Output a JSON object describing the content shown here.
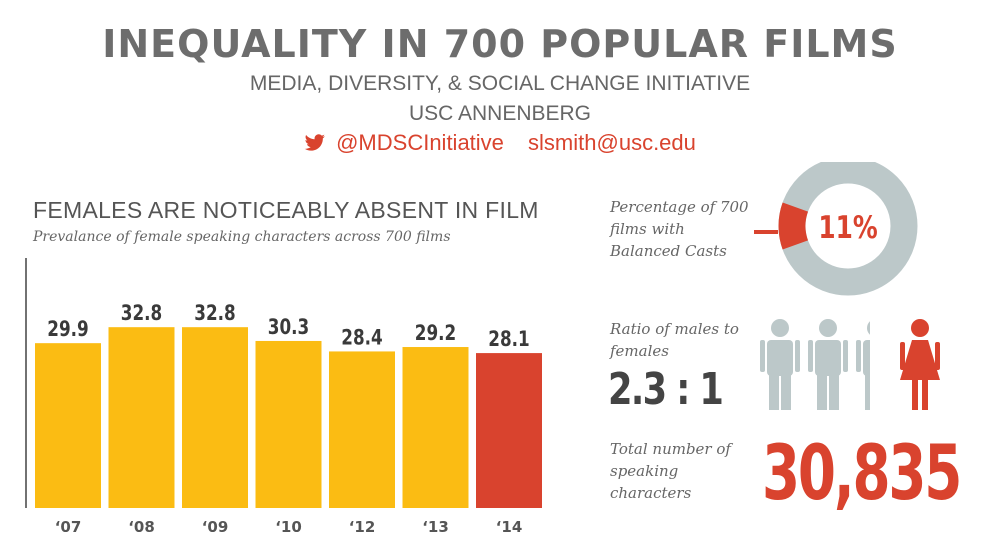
{
  "header": {
    "title": "INEQUALITY IN 700 POPULAR FILMS",
    "organization": "MEDIA, DIVERSITY, & SOCIAL CHANGE INITIATIVE",
    "unit": "USC ANNENBERG",
    "twitter": "@MDSCInitiative",
    "email": "slsmith@usc.edu"
  },
  "colors": {
    "bar": "#fbbc13",
    "highlight": "#d9432e",
    "gray": "#bcc8c9",
    "text": "#4a4a4a"
  },
  "chart_data": {
    "type": "bar",
    "title": "FEMALES ARE NOTICEABLY ABSENT IN FILM",
    "subtitle": "Prevalance of female speaking characters across 700 films",
    "categories": [
      "‘07",
      "‘08",
      "‘09",
      "‘10",
      "‘12",
      "‘13",
      "‘14"
    ],
    "values": [
      29.9,
      32.8,
      32.8,
      30.3,
      28.4,
      29.2,
      28.1
    ],
    "value_labels": [
      "29.9",
      "32.8",
      "32.8",
      "30.3",
      "28.4",
      "29.2",
      "28.1"
    ],
    "highlight_index": 6,
    "ylim": [
      0,
      39
    ],
    "grid": false,
    "legend": "none"
  },
  "stats": {
    "balanced_label": "Percentage of 700 films with Balanced Casts",
    "balanced_value": "11%",
    "balanced_fraction": 0.11,
    "ratio_label": "Ratio of males to females",
    "ratio_value": "2.3 : 1",
    "total_label": "Total number of speaking characters",
    "total_value": "30,835"
  },
  "icons": {
    "twitter": "twitter-icon",
    "male": "male-figure-icon",
    "female": "female-figure-icon"
  }
}
